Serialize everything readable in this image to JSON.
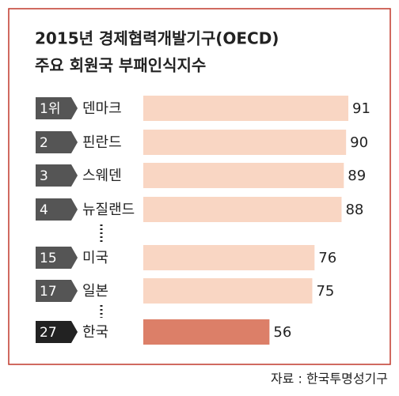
{
  "chart_data": {
    "type": "bar",
    "orientation": "horizontal",
    "title": "2015년 경제협력개발기구(OECD)",
    "subtitle": "주요 회원국 부패인식지수",
    "ranks": [
      "1위",
      "2",
      "3",
      "4",
      "15",
      "17",
      "27"
    ],
    "categories": [
      "덴마크",
      "핀란드",
      "스웨덴",
      "뉴질랜드",
      "미국",
      "일본",
      "한국"
    ],
    "values": [
      91,
      90,
      89,
      88,
      76,
      75,
      56
    ],
    "colors": [
      "#f9d6c3",
      "#f9d6c3",
      "#f9d6c3",
      "#f9d6c3",
      "#f9d6c3",
      "#f9d6c3",
      "#dc7f68"
    ],
    "rank_colors": [
      "#555555",
      "#555555",
      "#555555",
      "#555555",
      "#555555",
      "#555555",
      "#222222"
    ],
    "source": "자료 : 한국투명성기구"
  }
}
